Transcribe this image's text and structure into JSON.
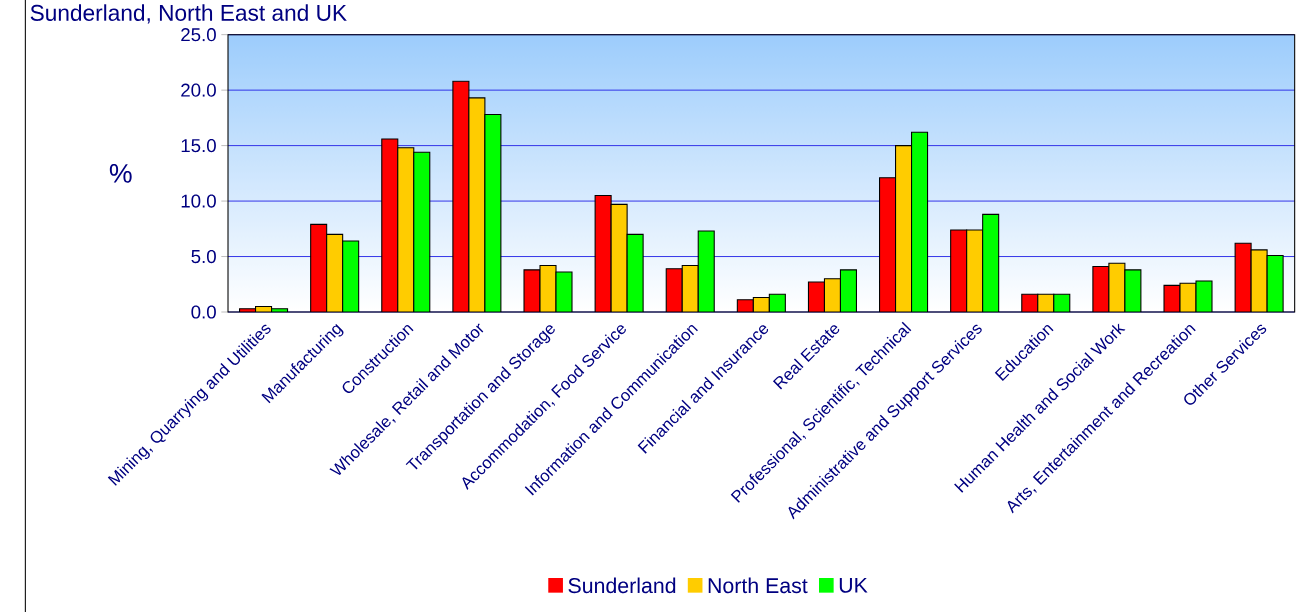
{
  "chart_data": {
    "type": "bar",
    "title": "Sunderland, North East and UK",
    "ylabel": "%",
    "categories": [
      "Mining, Quarrying and Utilities",
      "Manufacturing",
      "Construction",
      "Wholesale, Retail and Motor",
      "Transportation and Storage",
      "Accommodation, Food Service",
      "Information and Communication",
      "Financial and Insurance",
      "Real Estate",
      "Professional, Scientific, Technical",
      "Administrative and Support Services",
      "Education",
      "Human Health and Social Work",
      "Arts, Entertainment and Recreation",
      "Other Services"
    ],
    "series": [
      {
        "name": "Sunderland",
        "color": "#ff0000",
        "values": [
          0.3,
          7.9,
          15.6,
          20.8,
          3.8,
          10.5,
          3.9,
          1.1,
          2.7,
          12.1,
          7.4,
          1.6,
          4.1,
          2.4,
          6.2
        ]
      },
      {
        "name": "North East",
        "color": "#ffcc00",
        "values": [
          0.5,
          7.0,
          14.8,
          19.3,
          4.2,
          9.7,
          4.2,
          1.3,
          3.0,
          15.0,
          7.4,
          1.6,
          4.4,
          2.6,
          5.6
        ]
      },
      {
        "name": "UK",
        "color": "#00ff00",
        "values": [
          0.3,
          6.4,
          14.4,
          17.8,
          3.6,
          7.0,
          7.3,
          1.6,
          3.8,
          16.2,
          8.8,
          1.6,
          3.8,
          2.8,
          5.1
        ]
      }
    ],
    "ylim": [
      0,
      25
    ],
    "yticks": [
      {
        "value": 0,
        "label": "0.0"
      },
      {
        "value": 5,
        "label": "5.0"
      },
      {
        "value": 10,
        "label": "10.0"
      },
      {
        "value": 15,
        "label": "15.0"
      },
      {
        "value": 20,
        "label": "20.0"
      },
      {
        "value": 25,
        "label": "25.0"
      }
    ],
    "grid": "y",
    "legend": "bottom"
  }
}
